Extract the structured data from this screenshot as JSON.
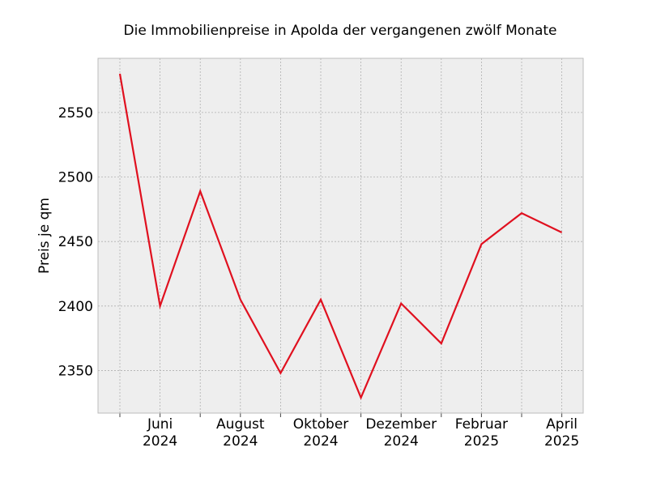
{
  "chart_data": {
    "type": "line",
    "title": "Die Immobilienpreise in Apolda der vergangenen zwölf Monate",
    "xlabel": "",
    "ylabel": "Preis je qm",
    "x": [
      "2024-05",
      "2024-06",
      "2024-07",
      "2024-08",
      "2024-09",
      "2024-10",
      "2024-11",
      "2024-12",
      "2025-01",
      "2025-02",
      "2025-03",
      "2025-04"
    ],
    "series": [
      {
        "values": [
          2580,
          2400,
          2489,
          2405,
          2348,
          2405,
          2329,
          2402,
          2371,
          2448,
          2472,
          2457
        ]
      }
    ],
    "x_ticks": [
      {
        "x": "2024-06",
        "lines": [
          "Juni",
          "2024"
        ]
      },
      {
        "x": "2024-08",
        "lines": [
          "August",
          "2024"
        ]
      },
      {
        "x": "2024-10",
        "lines": [
          "Oktober",
          "2024"
        ]
      },
      {
        "x": "2024-12",
        "lines": [
          "Dezember",
          "2024"
        ]
      },
      {
        "x": "2025-02",
        "lines": [
          "Februar",
          "2025"
        ]
      },
      {
        "x": "2025-04",
        "lines": [
          "April",
          "2025"
        ]
      }
    ],
    "y_ticks": [
      2350,
      2400,
      2450,
      2500,
      2550
    ],
    "ylim": [
      2317,
      2592
    ],
    "grid": true,
    "colors": {
      "line": "#e0101f",
      "plot_background": "#eeeeee",
      "grid": "#b0b0b0",
      "frame": "#bcbcbc"
    }
  }
}
